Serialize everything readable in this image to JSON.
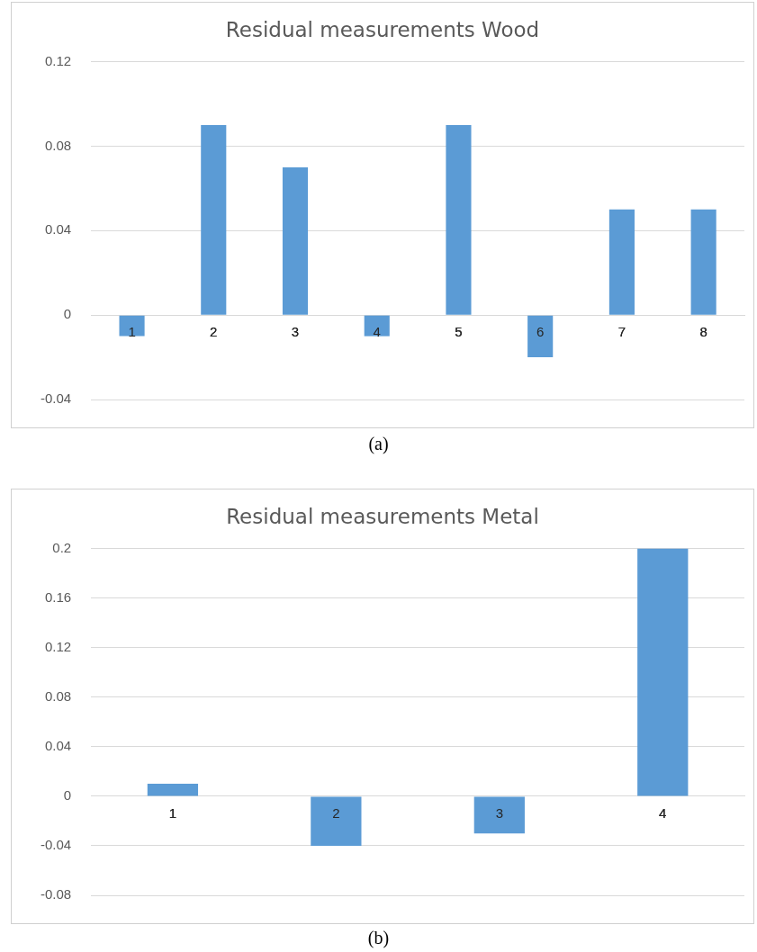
{
  "chart_data": [
    {
      "type": "bar",
      "title": "Residual measurements Wood",
      "categories": [
        "1",
        "2",
        "3",
        "4",
        "5",
        "6",
        "7",
        "8"
      ],
      "values": [
        -0.01,
        0.09,
        0.07,
        -0.01,
        0.09,
        -0.02,
        0.05,
        0.05
      ],
      "color": "#5b9bd5",
      "ylim": [
        -0.04,
        0.12
      ],
      "yticks": [
        -0.04,
        0,
        0.04,
        0.08,
        0.12
      ],
      "grid": "y",
      "legend": false,
      "annotations": [
        "(a)"
      ]
    },
    {
      "type": "bar",
      "title": "Residual measurements Metal",
      "categories": [
        "1",
        "2",
        "3",
        "4"
      ],
      "values": [
        0.01,
        -0.04,
        -0.03,
        0.2
      ],
      "color": "#5b9bd5",
      "ylim": [
        -0.08,
        0.2
      ],
      "yticks": [
        -0.08,
        -0.04,
        0,
        0.04,
        0.08,
        0.12,
        0.16,
        0.2
      ],
      "grid": "y",
      "legend": false,
      "annotations": [
        "(b)"
      ]
    }
  ]
}
